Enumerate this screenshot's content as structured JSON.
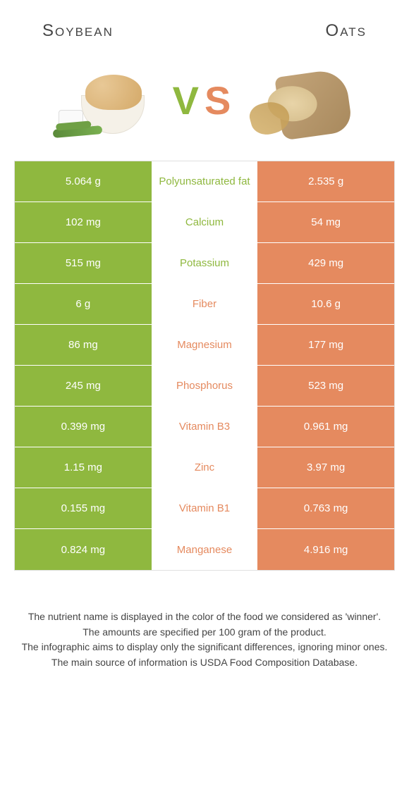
{
  "title_left": "Soybean",
  "title_right": "Oats",
  "vs": {
    "v": "V",
    "s": "S"
  },
  "colors": {
    "soybean": "#8fb83f",
    "oats": "#e58a5f",
    "soybean_strong": "#8fb83f",
    "oats_strong": "#e58a5f",
    "row_border": "#ffffff"
  },
  "rows": [
    {
      "left": "5.064 g",
      "label": "Polyunsaturated fat",
      "right": "2.535 g",
      "winner": "left"
    },
    {
      "left": "102 mg",
      "label": "Calcium",
      "right": "54 mg",
      "winner": "left"
    },
    {
      "left": "515 mg",
      "label": "Potassium",
      "right": "429 mg",
      "winner": "left"
    },
    {
      "left": "6 g",
      "label": "Fiber",
      "right": "10.6 g",
      "winner": "right"
    },
    {
      "left": "86 mg",
      "label": "Magnesium",
      "right": "177 mg",
      "winner": "right"
    },
    {
      "left": "245 mg",
      "label": "Phosphorus",
      "right": "523 mg",
      "winner": "right"
    },
    {
      "left": "0.399 mg",
      "label": "Vitamin B3",
      "right": "0.961 mg",
      "winner": "right"
    },
    {
      "left": "1.15 mg",
      "label": "Zinc",
      "right": "3.97 mg",
      "winner": "right"
    },
    {
      "left": "0.155 mg",
      "label": "Vitamin B1",
      "right": "0.763 mg",
      "winner": "right"
    },
    {
      "left": "0.824 mg",
      "label": "Manganese",
      "right": "4.916 mg",
      "winner": "right"
    }
  ],
  "footer_lines": [
    "The nutrient name is displayed in the color of the food we considered as 'winner'.",
    "The amounts are specified per 100 gram of the product.",
    "The infographic aims to display only the significant differences, ignoring minor ones.",
    "The main source of information is USDA Food Composition Database."
  ]
}
